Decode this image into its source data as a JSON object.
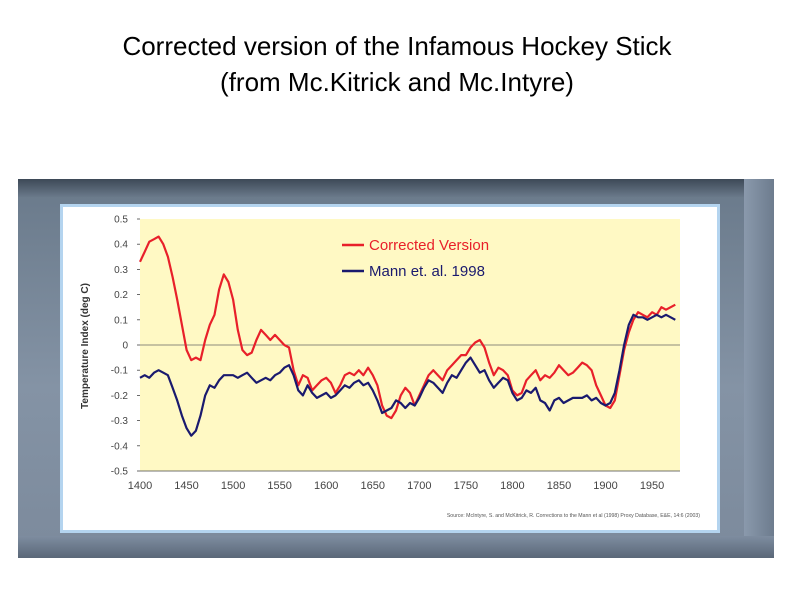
{
  "slide": {
    "title_line1": "Corrected version of the Infamous Hockey Stick",
    "title_line2": "(from Mc.Kitrick and Mc.Intyre)"
  },
  "chart_data": {
    "type": "line",
    "title": "",
    "xlabel": "",
    "ylabel": "Temperature Index (deg C)",
    "xlim": [
      1400,
      1980
    ],
    "ylim": [
      -0.5,
      0.5
    ],
    "xticks": [
      1400,
      1450,
      1500,
      1550,
      1600,
      1650,
      1700,
      1750,
      1800,
      1850,
      1900,
      1950
    ],
    "yticks": [
      0.5,
      0.4,
      0.3,
      0.2,
      0.1,
      0,
      -0.1,
      -0.2,
      -0.3,
      -0.4,
      -0.5
    ],
    "ytick_labels": [
      "0.5",
      "0.4",
      "0.3",
      "0.2",
      "0.1",
      "0",
      "-0.1",
      "-0.2",
      "-0.3",
      "-0.4",
      "-0.5"
    ],
    "legend_position": "top-center",
    "plot_background": "#fff9c4",
    "source": "Source: McIntyre, S. and McKitrick, R. Corrections to the Mann et al (1998) Proxy Database, E&E, 14:6 (2003)",
    "series": [
      {
        "name": "Corrected Version",
        "color": "#e8202a",
        "x": [
          1400,
          1405,
          1410,
          1415,
          1420,
          1425,
          1430,
          1435,
          1440,
          1445,
          1450,
          1455,
          1460,
          1465,
          1470,
          1475,
          1480,
          1485,
          1490,
          1495,
          1500,
          1505,
          1510,
          1515,
          1520,
          1525,
          1530,
          1535,
          1540,
          1545,
          1550,
          1555,
          1560,
          1565,
          1570,
          1575,
          1580,
          1585,
          1590,
          1595,
          1600,
          1605,
          1610,
          1615,
          1620,
          1625,
          1630,
          1635,
          1640,
          1645,
          1650,
          1655,
          1660,
          1665,
          1670,
          1675,
          1680,
          1685,
          1690,
          1695,
          1700,
          1705,
          1710,
          1715,
          1720,
          1725,
          1730,
          1735,
          1740,
          1745,
          1750,
          1755,
          1760,
          1765,
          1770,
          1775,
          1780,
          1785,
          1790,
          1795,
          1800,
          1805,
          1810,
          1815,
          1820,
          1825,
          1830,
          1835,
          1840,
          1845,
          1850,
          1855,
          1860,
          1865,
          1870,
          1875,
          1880,
          1885,
          1890,
          1895,
          1900,
          1905,
          1910,
          1915,
          1920,
          1925,
          1930,
          1935,
          1940,
          1945,
          1950,
          1955,
          1960,
          1965,
          1970,
          1975
        ],
        "values": [
          0.33,
          0.37,
          0.41,
          0.42,
          0.43,
          0.4,
          0.35,
          0.27,
          0.18,
          0.08,
          -0.02,
          -0.06,
          -0.05,
          -0.06,
          0.02,
          0.08,
          0.12,
          0.22,
          0.28,
          0.25,
          0.18,
          0.06,
          -0.02,
          -0.04,
          -0.03,
          0.02,
          0.06,
          0.04,
          0.02,
          0.04,
          0.02,
          0.0,
          -0.01,
          -0.1,
          -0.16,
          -0.12,
          -0.13,
          -0.18,
          -0.16,
          -0.14,
          -0.13,
          -0.15,
          -0.19,
          -0.16,
          -0.12,
          -0.11,
          -0.12,
          -0.1,
          -0.12,
          -0.09,
          -0.12,
          -0.16,
          -0.24,
          -0.28,
          -0.29,
          -0.26,
          -0.2,
          -0.17,
          -0.19,
          -0.24,
          -0.2,
          -0.16,
          -0.12,
          -0.1,
          -0.12,
          -0.14,
          -0.1,
          -0.08,
          -0.06,
          -0.04,
          -0.04,
          -0.01,
          0.01,
          0.02,
          -0.01,
          -0.07,
          -0.12,
          -0.09,
          -0.1,
          -0.12,
          -0.18,
          -0.2,
          -0.19,
          -0.14,
          -0.12,
          -0.1,
          -0.14,
          -0.12,
          -0.13,
          -0.11,
          -0.08,
          -0.1,
          -0.12,
          -0.11,
          -0.09,
          -0.07,
          -0.08,
          -0.1,
          -0.16,
          -0.2,
          -0.24,
          -0.25,
          -0.22,
          -0.12,
          -0.02,
          0.05,
          0.1,
          0.13,
          0.12,
          0.11,
          0.13,
          0.12,
          0.15,
          0.14,
          0.15,
          0.16
        ]
      },
      {
        "name": "Mann et. al. 1998",
        "color": "#1a1a6e",
        "x": [
          1400,
          1405,
          1410,
          1415,
          1420,
          1425,
          1430,
          1435,
          1440,
          1445,
          1450,
          1455,
          1460,
          1465,
          1470,
          1475,
          1480,
          1485,
          1490,
          1495,
          1500,
          1505,
          1510,
          1515,
          1520,
          1525,
          1530,
          1535,
          1540,
          1545,
          1550,
          1555,
          1560,
          1565,
          1570,
          1575,
          1580,
          1585,
          1590,
          1595,
          1600,
          1605,
          1610,
          1615,
          1620,
          1625,
          1630,
          1635,
          1640,
          1645,
          1650,
          1655,
          1660,
          1665,
          1670,
          1675,
          1680,
          1685,
          1690,
          1695,
          1700,
          1705,
          1710,
          1715,
          1720,
          1725,
          1730,
          1735,
          1740,
          1745,
          1750,
          1755,
          1760,
          1765,
          1770,
          1775,
          1780,
          1785,
          1790,
          1795,
          1800,
          1805,
          1810,
          1815,
          1820,
          1825,
          1830,
          1835,
          1840,
          1845,
          1850,
          1855,
          1860,
          1865,
          1870,
          1875,
          1880,
          1885,
          1890,
          1895,
          1900,
          1905,
          1910,
          1915,
          1920,
          1925,
          1930,
          1935,
          1940,
          1945,
          1950,
          1955,
          1960,
          1965,
          1970,
          1975
        ],
        "values": [
          -0.13,
          -0.12,
          -0.13,
          -0.11,
          -0.1,
          -0.11,
          -0.12,
          -0.17,
          -0.22,
          -0.28,
          -0.33,
          -0.36,
          -0.34,
          -0.28,
          -0.2,
          -0.16,
          -0.17,
          -0.14,
          -0.12,
          -0.12,
          -0.12,
          -0.13,
          -0.12,
          -0.11,
          -0.13,
          -0.15,
          -0.14,
          -0.13,
          -0.14,
          -0.12,
          -0.11,
          -0.09,
          -0.08,
          -0.12,
          -0.18,
          -0.2,
          -0.16,
          -0.19,
          -0.21,
          -0.2,
          -0.19,
          -0.21,
          -0.2,
          -0.18,
          -0.16,
          -0.17,
          -0.15,
          -0.14,
          -0.16,
          -0.15,
          -0.18,
          -0.22,
          -0.27,
          -0.26,
          -0.25,
          -0.22,
          -0.23,
          -0.25,
          -0.23,
          -0.24,
          -0.21,
          -0.17,
          -0.14,
          -0.15,
          -0.17,
          -0.19,
          -0.15,
          -0.12,
          -0.13,
          -0.1,
          -0.07,
          -0.05,
          -0.08,
          -0.11,
          -0.1,
          -0.14,
          -0.17,
          -0.15,
          -0.13,
          -0.14,
          -0.19,
          -0.22,
          -0.21,
          -0.18,
          -0.19,
          -0.17,
          -0.22,
          -0.23,
          -0.26,
          -0.22,
          -0.21,
          -0.23,
          -0.22,
          -0.21,
          -0.21,
          -0.21,
          -0.2,
          -0.22,
          -0.21,
          -0.23,
          -0.24,
          -0.23,
          -0.19,
          -0.1,
          0.0,
          0.08,
          0.12,
          0.11,
          0.11,
          0.1,
          0.11,
          0.12,
          0.11,
          0.12,
          0.11,
          0.1
        ]
      }
    ]
  }
}
